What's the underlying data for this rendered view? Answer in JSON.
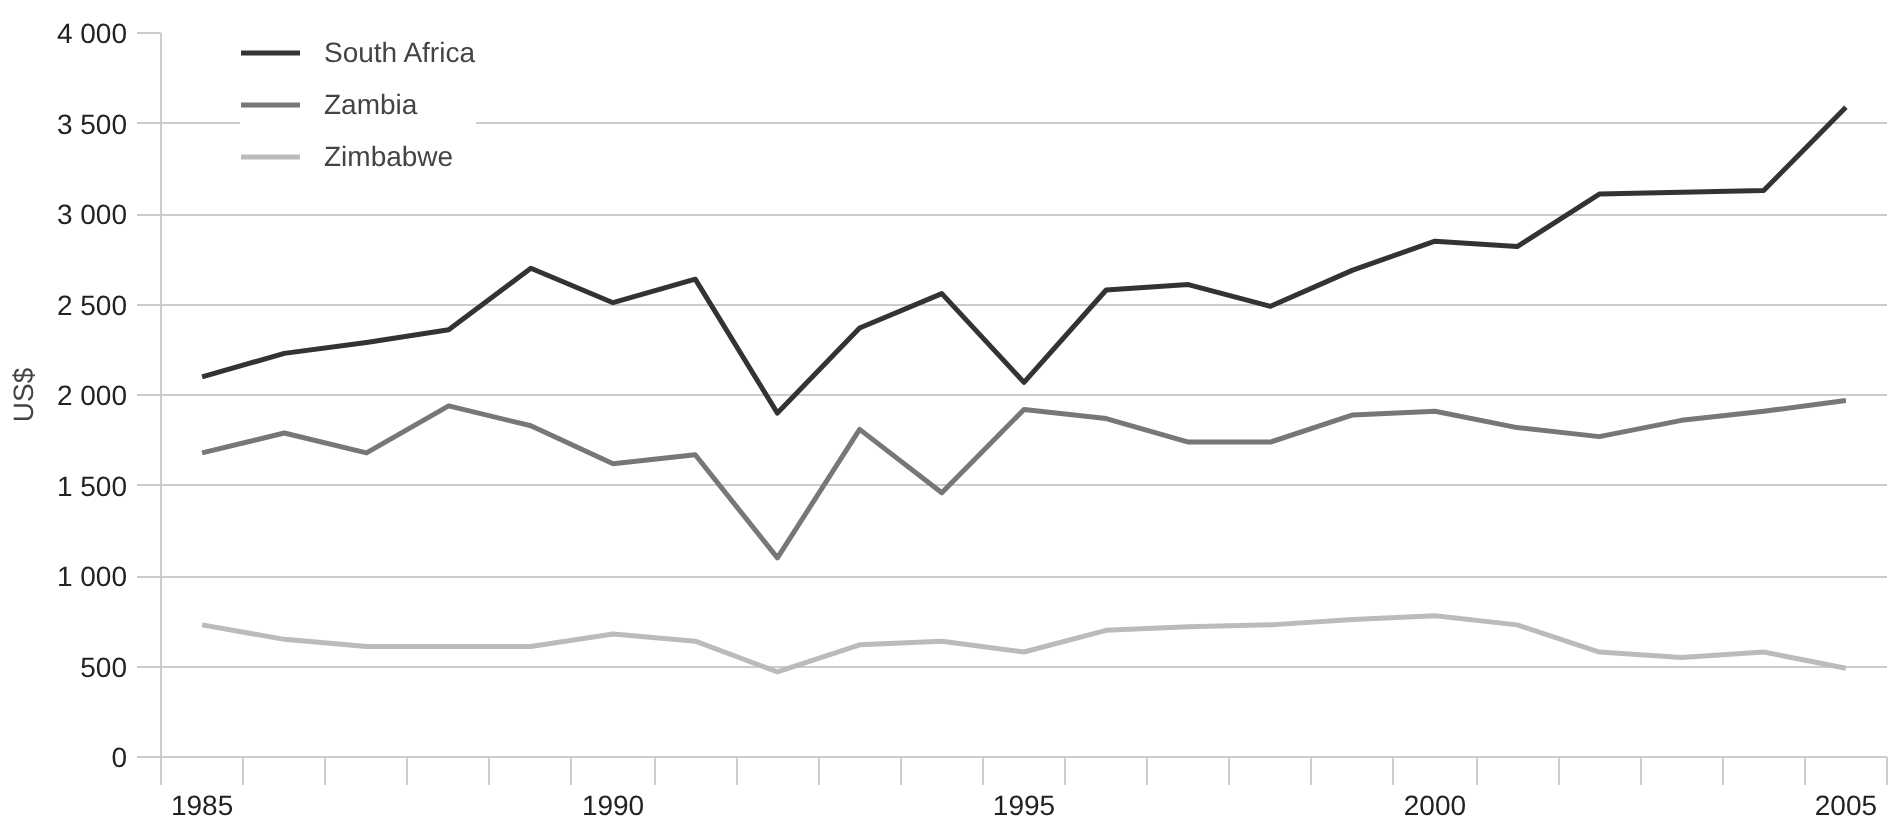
{
  "chart_data": {
    "type": "line",
    "ylabel": "US$",
    "x": [
      1985,
      1986,
      1987,
      1988,
      1989,
      1990,
      1991,
      1992,
      1993,
      1994,
      1995,
      1996,
      1997,
      1998,
      1999,
      2000,
      2001,
      2002,
      2003,
      2004,
      2005
    ],
    "series": [
      {
        "name": "South Africa",
        "color": "#333333",
        "values": [
          2100,
          2230,
          2290,
          2360,
          2700,
          2510,
          2640,
          1900,
          2370,
          2560,
          2070,
          2580,
          2610,
          2490,
          2690,
          2850,
          2820,
          3110,
          3120,
          3130,
          3590
        ]
      },
      {
        "name": "Zambia",
        "color": "#777777",
        "values": [
          1680,
          1790,
          1680,
          1940,
          1830,
          1620,
          1670,
          1100,
          1810,
          1460,
          1920,
          1870,
          1740,
          1740,
          1890,
          1910,
          1820,
          1770,
          1860,
          1910,
          1970
        ]
      },
      {
        "name": "Zimbabwe",
        "color": "#bbbbbb",
        "values": [
          730,
          650,
          610,
          610,
          610,
          680,
          640,
          470,
          620,
          640,
          580,
          700,
          720,
          730,
          760,
          780,
          730,
          580,
          550,
          580,
          490
        ]
      }
    ],
    "xlim": [
      1984.5,
      2005.5
    ],
    "xticks": [
      1985,
      1990,
      1995,
      2000,
      2005
    ],
    "ylim": [
      0,
      4000
    ],
    "yticks": [
      0,
      500,
      {
        "value": 1000,
        "label": "1 000"
      },
      {
        "value": 1500,
        "label": "1 500"
      },
      {
        "value": 2000,
        "label": "2 000"
      },
      {
        "value": 2500,
        "label": "2 500"
      },
      {
        "value": 3000,
        "label": "3 000"
      },
      {
        "value": 3500,
        "label": "3 500"
      },
      {
        "value": 4000,
        "label": "4 000"
      }
    ],
    "grid": "y",
    "legend": "top left",
    "line_style": "solid"
  }
}
